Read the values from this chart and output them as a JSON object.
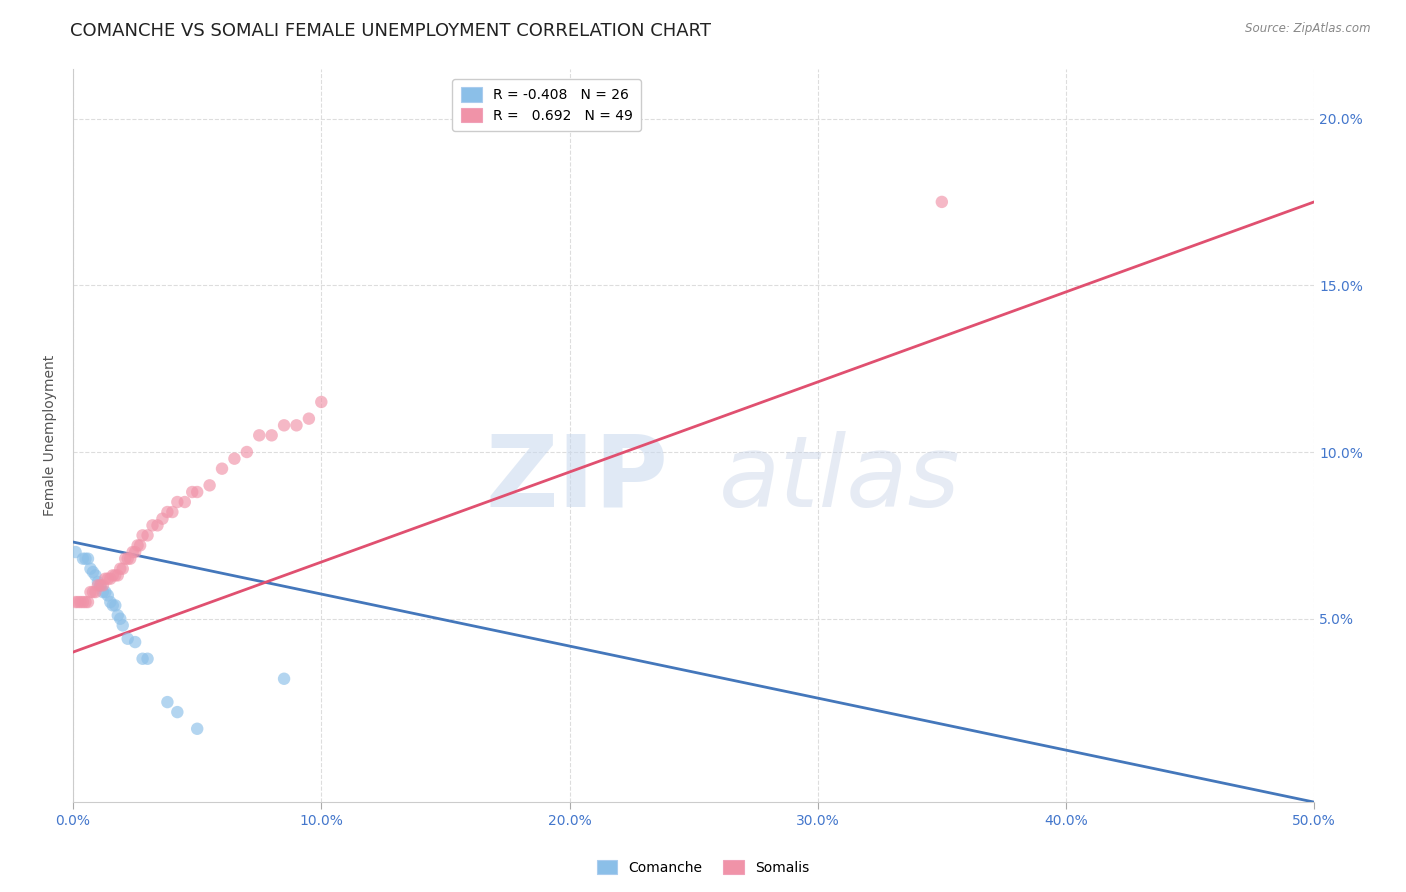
{
  "title": "COMANCHE VS SOMALI FEMALE UNEMPLOYMENT CORRELATION CHART",
  "source": "Source: ZipAtlas.com",
  "ylabel": "Female Unemployment",
  "watermark_zip": "ZIP",
  "watermark_atlas": "atlas",
  "xlim": [
    0.0,
    0.5
  ],
  "ylim": [
    -0.005,
    0.215
  ],
  "xticks": [
    0.0,
    0.1,
    0.2,
    0.3,
    0.4,
    0.5
  ],
  "xticklabels": [
    "0.0%",
    "10.0%",
    "20.0%",
    "30.0%",
    "40.0%",
    "50.0%"
  ],
  "yticks": [
    0.05,
    0.1,
    0.15,
    0.2
  ],
  "yticklabels": [
    "5.0%",
    "10.0%",
    "15.0%",
    "20.0%"
  ],
  "legend_label1": "R = -0.408   N = 26",
  "legend_label2": "R =   0.692   N = 49",
  "bottom_legend1": "Comanche",
  "bottom_legend2": "Somalis",
  "comanche_color": "#8bbfe8",
  "somali_color": "#f093a8",
  "comanche_line_color": "#4477bb",
  "somali_line_color": "#e05070",
  "comanche_x": [
    0.001,
    0.004,
    0.005,
    0.006,
    0.007,
    0.008,
    0.009,
    0.01,
    0.011,
    0.012,
    0.013,
    0.014,
    0.015,
    0.016,
    0.017,
    0.018,
    0.019,
    0.02,
    0.022,
    0.025,
    0.028,
    0.03,
    0.038,
    0.042,
    0.05,
    0.085
  ],
  "comanche_y": [
    0.07,
    0.068,
    0.068,
    0.068,
    0.065,
    0.064,
    0.063,
    0.061,
    0.06,
    0.058,
    0.058,
    0.057,
    0.055,
    0.054,
    0.054,
    0.051,
    0.05,
    0.048,
    0.044,
    0.043,
    0.038,
    0.038,
    0.025,
    0.022,
    0.017,
    0.032
  ],
  "somali_x": [
    0.001,
    0.002,
    0.003,
    0.004,
    0.005,
    0.006,
    0.007,
    0.008,
    0.009,
    0.01,
    0.011,
    0.012,
    0.013,
    0.014,
    0.015,
    0.016,
    0.017,
    0.018,
    0.019,
    0.02,
    0.021,
    0.022,
    0.023,
    0.024,
    0.025,
    0.026,
    0.027,
    0.028,
    0.03,
    0.032,
    0.034,
    0.036,
    0.038,
    0.04,
    0.042,
    0.045,
    0.048,
    0.05,
    0.055,
    0.06,
    0.065,
    0.07,
    0.075,
    0.08,
    0.085,
    0.09,
    0.095,
    0.1,
    0.35
  ],
  "somali_y": [
    0.055,
    0.055,
    0.055,
    0.055,
    0.055,
    0.055,
    0.058,
    0.058,
    0.058,
    0.06,
    0.06,
    0.06,
    0.062,
    0.062,
    0.062,
    0.063,
    0.063,
    0.063,
    0.065,
    0.065,
    0.068,
    0.068,
    0.068,
    0.07,
    0.07,
    0.072,
    0.072,
    0.075,
    0.075,
    0.078,
    0.078,
    0.08,
    0.082,
    0.082,
    0.085,
    0.085,
    0.088,
    0.088,
    0.09,
    0.095,
    0.098,
    0.1,
    0.105,
    0.105,
    0.108,
    0.108,
    0.11,
    0.115,
    0.175
  ],
  "comanche_line_x": [
    0.0,
    0.5
  ],
  "comanche_line_y": [
    0.073,
    -0.005
  ],
  "somali_line_x": [
    0.0,
    0.5
  ],
  "somali_line_y": [
    0.04,
    0.175
  ],
  "grid_color": "#dddddd",
  "background_color": "#ffffff",
  "title_fontsize": 13,
  "axis_fontsize": 10,
  "tick_fontsize": 10,
  "marker_size": 80,
  "marker_alpha": 0.65
}
